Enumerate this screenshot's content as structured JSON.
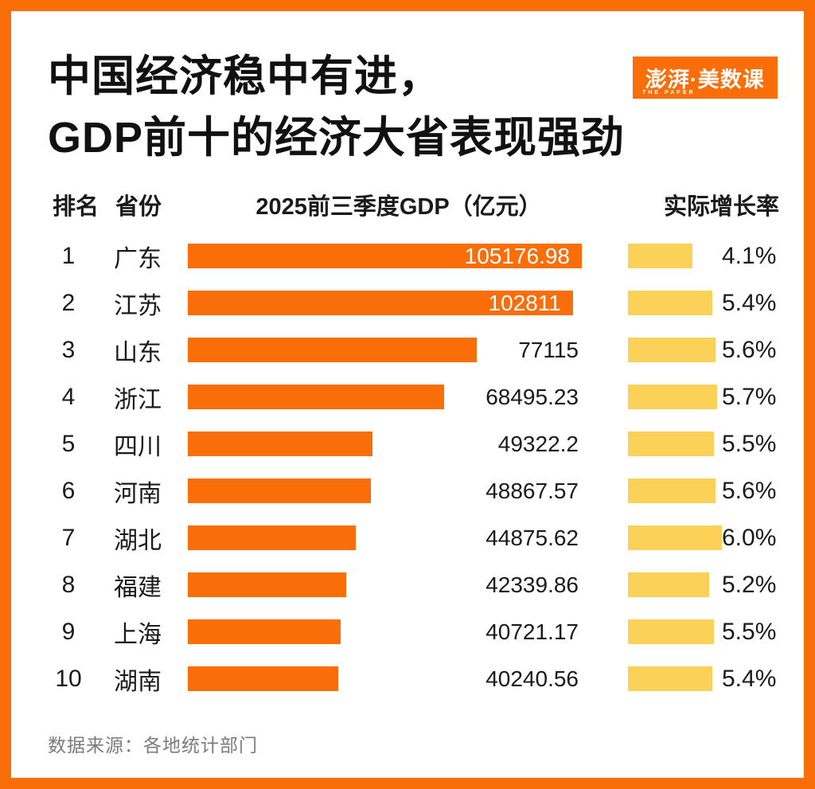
{
  "header": {
    "title_line1": "中国经济稳中有进，",
    "title_line2": "GDP前十的经济大省表现强劲"
  },
  "logo": {
    "text_cn": "澎湃·美数课",
    "text_en": "THE PAPER"
  },
  "table_headers": {
    "rank": "排名",
    "province": "省份",
    "gdp": "2025前三季度GDP（亿元）",
    "growth": "实际增长率"
  },
  "footer": {
    "source": "数据来源：各地统计部门"
  },
  "colors": {
    "accent_orange": "#FA6E0A",
    "growth_yellow": "#FCD158",
    "text_black": "#1A1A1A",
    "source_gray": "#7B7B7B"
  },
  "chart_data": {
    "type": "bar",
    "title": "中国经济稳中有进，GDP前十的经济大省表现强劲",
    "categories": [
      "广东",
      "江苏",
      "山东",
      "浙江",
      "四川",
      "河南",
      "湖北",
      "福建",
      "上海",
      "湖南"
    ],
    "series": [
      {
        "name": "2025前三季度GDP（亿元）",
        "values": [
          105176.98,
          102811,
          77115,
          68495.23,
          49322.2,
          48867.57,
          44875.62,
          42339.86,
          40721.17,
          40240.56
        ]
      },
      {
        "name": "实际增长率(%)",
        "values": [
          4.1,
          5.4,
          5.6,
          5.7,
          5.5,
          5.6,
          6.0,
          5.2,
          5.5,
          5.4
        ]
      }
    ],
    "gdp_axis_max": 105176.98,
    "growth_axis_max": 6.0,
    "legend_position": "none",
    "grid": false,
    "rows": [
      {
        "rank": "1",
        "province": "广东",
        "gdp_label": "105176.98",
        "gdp_value": 105176.98,
        "gdp_label_inside": true,
        "growth_label": "4.1%",
        "growth_value": 4.1
      },
      {
        "rank": "2",
        "province": "江苏",
        "gdp_label": "102811",
        "gdp_value": 102811,
        "gdp_label_inside": true,
        "growth_label": "5.4%",
        "growth_value": 5.4
      },
      {
        "rank": "3",
        "province": "山东",
        "gdp_label": "77115",
        "gdp_value": 77115,
        "gdp_label_inside": false,
        "growth_label": "5.6%",
        "growth_value": 5.6
      },
      {
        "rank": "4",
        "province": "浙江",
        "gdp_label": "68495.23",
        "gdp_value": 68495.23,
        "gdp_label_inside": false,
        "growth_label": "5.7%",
        "growth_value": 5.7
      },
      {
        "rank": "5",
        "province": "四川",
        "gdp_label": "49322.2",
        "gdp_value": 49322.2,
        "gdp_label_inside": false,
        "growth_label": "5.5%",
        "growth_value": 5.5
      },
      {
        "rank": "6",
        "province": "河南",
        "gdp_label": "48867.57",
        "gdp_value": 48867.57,
        "gdp_label_inside": false,
        "growth_label": "5.6%",
        "growth_value": 5.6
      },
      {
        "rank": "7",
        "province": "湖北",
        "gdp_label": "44875.62",
        "gdp_value": 44875.62,
        "gdp_label_inside": false,
        "growth_label": "6.0%",
        "growth_value": 6.0
      },
      {
        "rank": "8",
        "province": "福建",
        "gdp_label": "42339.86",
        "gdp_value": 42339.86,
        "gdp_label_inside": false,
        "growth_label": "5.2%",
        "growth_value": 5.2
      },
      {
        "rank": "9",
        "province": "上海",
        "gdp_label": "40721.17",
        "gdp_value": 40721.17,
        "gdp_label_inside": false,
        "growth_label": "5.5%",
        "growth_value": 5.5
      },
      {
        "rank": "10",
        "province": "湖南",
        "gdp_label": "40240.56",
        "gdp_value": 40240.56,
        "gdp_label_inside": false,
        "growth_label": "5.4%",
        "growth_value": 5.4
      }
    ]
  }
}
